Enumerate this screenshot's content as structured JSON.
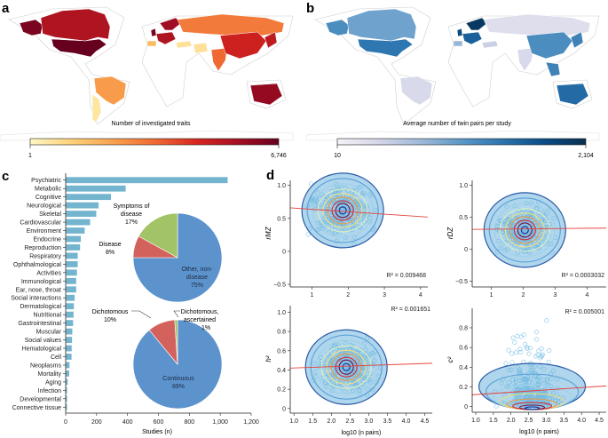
{
  "panel_labels": {
    "a": "a",
    "b": "b",
    "c": "c",
    "d": "d"
  },
  "chart_data": [
    {
      "id": "a",
      "type": "choropleth-map",
      "title": "Number of investigated traits",
      "colorbar": {
        "min_label": "1",
        "max_label": "6,746",
        "min": 1,
        "max": 6746,
        "colors": [
          "#fff7c4",
          "#fdd17a",
          "#f9a24e",
          "#ef6a33",
          "#d7261f",
          "#a50f22",
          "#67001f"
        ]
      },
      "regions": [
        {
          "name": "Alaska/USA",
          "level": 0.95
        },
        {
          "name": "USA",
          "level": 1.0
        },
        {
          "name": "Canada",
          "level": 0.8
        },
        {
          "name": "Brazil",
          "level": 0.35
        },
        {
          "name": "Chile/Argentina",
          "level": 0.08
        },
        {
          "name": "UK",
          "level": 0.95
        },
        {
          "name": "Scandinavia",
          "level": 0.85
        },
        {
          "name": "Western Europe",
          "level": 0.8
        },
        {
          "name": "Spain",
          "level": 0.25
        },
        {
          "name": "Russia",
          "level": 0.45
        },
        {
          "name": "Turkey/Middle East",
          "level": 0.1
        },
        {
          "name": "Iran",
          "level": 0.1
        },
        {
          "name": "India",
          "level": 0.5
        },
        {
          "name": "China",
          "level": 0.7
        },
        {
          "name": "Japan/Korea",
          "level": 0.75
        },
        {
          "name": "Australia",
          "level": 0.88
        }
      ]
    },
    {
      "id": "b",
      "type": "choropleth-map",
      "title": "Average number of twin pairs per study",
      "colorbar": {
        "min_label": "10",
        "max_label": "2,104",
        "min": 10,
        "max": 2104,
        "colors": [
          "#f4f2f8",
          "#d5d6e8",
          "#9ebad8",
          "#5b98c8",
          "#2a73ae",
          "#0b4c86",
          "#08304f"
        ]
      },
      "regions": [
        {
          "name": "Alaska/USA",
          "level": 0.55
        },
        {
          "name": "USA",
          "level": 0.65
        },
        {
          "name": "Canada",
          "level": 0.45
        },
        {
          "name": "Brazil",
          "level": 0.15
        },
        {
          "name": "UK",
          "level": 0.85
        },
        {
          "name": "Scandinavia",
          "level": 0.95
        },
        {
          "name": "Western Europe",
          "level": 0.75
        },
        {
          "name": "Spain",
          "level": 0.35
        },
        {
          "name": "Russia",
          "level": 0.12
        },
        {
          "name": "Turkey/Middle East",
          "level": 0.2
        },
        {
          "name": "India",
          "level": 0.15
        },
        {
          "name": "China",
          "level": 0.55
        },
        {
          "name": "Japan/Korea",
          "level": 0.6
        },
        {
          "name": "SE Asia",
          "level": 0.6
        },
        {
          "name": "Australia",
          "level": 0.7
        }
      ]
    },
    {
      "id": "c-bar",
      "type": "bar",
      "orientation": "horizontal",
      "categories": [
        "Psychiatric",
        "Metabolic",
        "Cognitive",
        "Neurological",
        "Skeletal",
        "Cardiovascular",
        "Environment",
        "Endocrine",
        "Reproduction",
        "Respiratory",
        "Ophthalmological",
        "Activities",
        "Immunological",
        "Ear, nose, throat",
        "Social interactions",
        "Dermatological",
        "Nutritional",
        "Gastrointestinal",
        "Muscular",
        "Social values",
        "Hematological",
        "Cell",
        "Neoplasms",
        "Mortality",
        "Aging",
        "Infection",
        "Developmental",
        "Connective tissue"
      ],
      "values": [
        1045,
        385,
        290,
        210,
        195,
        155,
        120,
        95,
        90,
        75,
        75,
        70,
        65,
        65,
        55,
        50,
        48,
        45,
        40,
        38,
        36,
        35,
        22,
        20,
        10,
        5,
        4,
        3
      ],
      "xlabel": "Studies (n)",
      "xlim": [
        0,
        1200
      ],
      "xticks": [
        "0",
        "200",
        "400",
        "600",
        "800",
        "1,000",
        "1,200"
      ],
      "color": "#73b4cf"
    },
    {
      "id": "c-pie-1",
      "type": "pie",
      "slices": [
        {
          "label": "Other, non-disease",
          "pct_label": "75%",
          "value": 75,
          "color": "#5d93cd"
        },
        {
          "label": "Disease",
          "pct_label": "8%",
          "value": 8,
          "color": "#d4625c"
        },
        {
          "label": "Symptoms of disease",
          "pct_label": "17%",
          "value": 17,
          "color": "#a2c466"
        }
      ]
    },
    {
      "id": "c-pie-2",
      "type": "pie",
      "slices": [
        {
          "label": "Continuous",
          "pct_label": "89%",
          "value": 89,
          "color": "#5d93cd"
        },
        {
          "label": "Dichotomous",
          "pct_label": "10%",
          "value": 10,
          "color": "#d4625c"
        },
        {
          "label": "Dichotomous, ascertained",
          "pct_label": "1%",
          "value": 1,
          "color": "#a2c466"
        }
      ]
    },
    {
      "id": "d-rmz",
      "type": "scatter",
      "ylabel": "r_MZ",
      "xlim": [
        0.4,
        4.2
      ],
      "ylim": [
        -0.5,
        1.05
      ],
      "xticks": [
        1,
        2,
        3,
        4
      ],
      "yticks": [
        -0.5,
        0,
        0.5,
        1.0
      ],
      "ytick_labels": [
        "−0.5",
        "0",
        "0.5",
        "1.0"
      ],
      "xtick_labels": [
        "1",
        "2",
        "3",
        "4"
      ],
      "r2_label": "R² = 0.009468",
      "fit": {
        "x": [
          0.4,
          4.2
        ],
        "y": [
          0.66,
          0.52
        ]
      },
      "density_center": [
        1.85,
        0.62
      ]
    },
    {
      "id": "d-rdz",
      "type": "scatter",
      "ylabel": "r_DZ",
      "xlim": [
        0.4,
        4.6
      ],
      "ylim": [
        -0.55,
        1.05
      ],
      "xticks": [
        1,
        2,
        3,
        4
      ],
      "yticks": [
        -0.5,
        0,
        0.5,
        1.0
      ],
      "ytick_labels": [
        "−0.5",
        "0",
        "0.5",
        "1.0"
      ],
      "xtick_labels": [
        "1",
        "2",
        "3",
        "4"
      ],
      "r2_label": "R² = 0.0003032",
      "fit": {
        "x": [
          0.4,
          4.6
        ],
        "y": [
          0.31,
          0.33
        ]
      },
      "density_center": [
        2.05,
        0.3
      ]
    },
    {
      "id": "d-h2",
      "type": "scatter",
      "ylabel": "h²",
      "xlabel": "log10 (n pairs)",
      "xlim": [
        0.9,
        4.7
      ],
      "ylim": [
        -0.02,
        1.05
      ],
      "xticks": [
        1.0,
        1.5,
        2.0,
        2.5,
        3.0,
        3.5,
        4.0,
        4.5
      ],
      "xtick_labels": [
        "1.0",
        "1.5",
        "2.0",
        "2.5",
        "3.0",
        "3.5",
        "4.0",
        "4.5"
      ],
      "yticks": [
        0,
        0.2,
        0.4,
        0.6,
        0.8,
        1.0
      ],
      "ytick_labels": [
        "0",
        "0.2",
        "0.4",
        "0.6",
        "0.8",
        "1.0"
      ],
      "r2_label": "R² = 0.001651",
      "fit": {
        "x": [
          0.9,
          4.7
        ],
        "y": [
          0.42,
          0.47
        ]
      },
      "density_center": [
        2.4,
        0.43
      ]
    },
    {
      "id": "d-c2",
      "type": "scatter",
      "ylabel": "c²",
      "xlabel": "log10 (n pairs)",
      "xlim": [
        0.9,
        4.7
      ],
      "ylim": [
        -0.03,
        0.98
      ],
      "xticks": [
        1.0,
        1.5,
        2.0,
        2.5,
        3.0,
        3.5,
        4.0,
        4.5
      ],
      "xtick_labels": [
        "1.0",
        "1.5",
        "2.0",
        "2.5",
        "3.0",
        "3.5",
        "4.0",
        "4.5"
      ],
      "yticks": [
        0,
        0.2,
        0.4,
        0.6,
        0.8
      ],
      "ytick_labels": [
        "0",
        "0.2",
        "0.4",
        "0.6",
        "0.8"
      ],
      "r2_label": "R² = 0.005001",
      "fit": {
        "x": [
          0.9,
          4.7
        ],
        "y": [
          0.12,
          0.21
        ]
      },
      "density_center": [
        2.6,
        0.02
      ]
    }
  ]
}
